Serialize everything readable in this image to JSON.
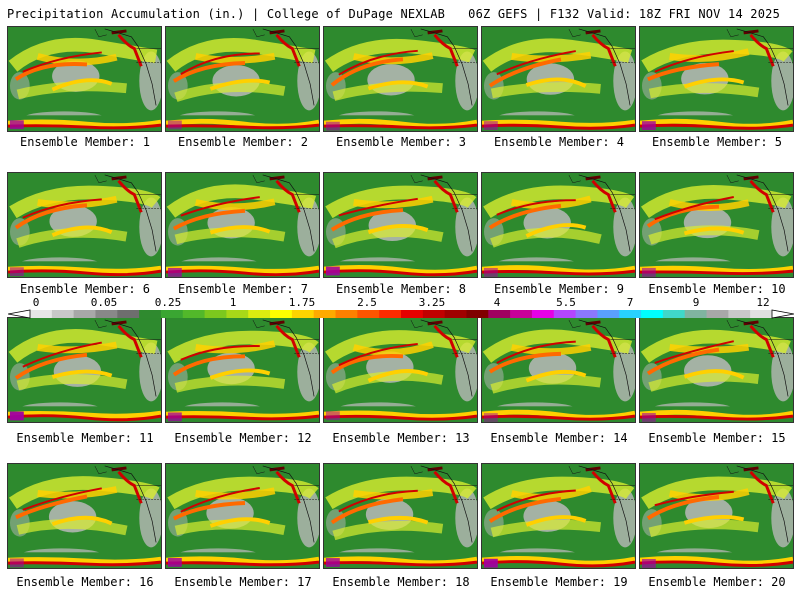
{
  "header": {
    "left": "Precipitation Accumulation (in.) | College of DuPage NEXLAB",
    "right": "06Z GEFS | F132 Valid: 18Z FRI NOV 14 2025"
  },
  "members": [
    {
      "label": "Ensemble Member: 1"
    },
    {
      "label": "Ensemble Member: 2"
    },
    {
      "label": "Ensemble Member: 3"
    },
    {
      "label": "Ensemble Member: 4"
    },
    {
      "label": "Ensemble Member: 5"
    },
    {
      "label": "Ensemble Member: 6"
    },
    {
      "label": "Ensemble Member: 7"
    },
    {
      "label": "Ensemble Member: 8"
    },
    {
      "label": "Ensemble Member: 9"
    },
    {
      "label": "Ensemble Member: 10"
    },
    {
      "label": "Ensemble Member: 11"
    },
    {
      "label": "Ensemble Member: 12"
    },
    {
      "label": "Ensemble Member: 13"
    },
    {
      "label": "Ensemble Member: 14"
    },
    {
      "label": "Ensemble Member: 15"
    },
    {
      "label": "Ensemble Member: 16"
    },
    {
      "label": "Ensemble Member: 17"
    },
    {
      "label": "Ensemble Member: 18"
    },
    {
      "label": "Ensemble Member: 19"
    },
    {
      "label": "Ensemble Member: 20"
    }
  ],
  "colorbar": {
    "labels": [
      "0",
      "0.05",
      "0.25",
      "1",
      "1.75",
      "2.5",
      "3.25",
      "4",
      "5.5",
      "7",
      "9",
      "12"
    ],
    "colors": [
      "#e6e6e6",
      "#c8c8c8",
      "#a8a8a8",
      "#888888",
      "#6e6e6e",
      "#2f8a2f",
      "#3aa632",
      "#52b82a",
      "#7cc81e",
      "#a8d818",
      "#dcec10",
      "#ffff00",
      "#ffd400",
      "#ffaa00",
      "#ff8000",
      "#ff5500",
      "#ff2a00",
      "#e60000",
      "#c00000",
      "#a00000",
      "#800000",
      "#a00060",
      "#c8009a",
      "#e600e6",
      "#b446ff",
      "#8c78ff",
      "#5aa0ff",
      "#28d2ff",
      "#00ffff",
      "#40d8c8",
      "#80b4a0",
      "#a8a8a8",
      "#c8c8c8",
      "#e0e0e0"
    ]
  },
  "colors": {
    "land": "#2e8a2e",
    "ocean_dry": "#b8b8b8",
    "light": "#d8ec30",
    "moderate": "#ffd000",
    "heavy": "#ff6a00",
    "very_heavy": "#d00000",
    "extreme": "#a000a0"
  }
}
